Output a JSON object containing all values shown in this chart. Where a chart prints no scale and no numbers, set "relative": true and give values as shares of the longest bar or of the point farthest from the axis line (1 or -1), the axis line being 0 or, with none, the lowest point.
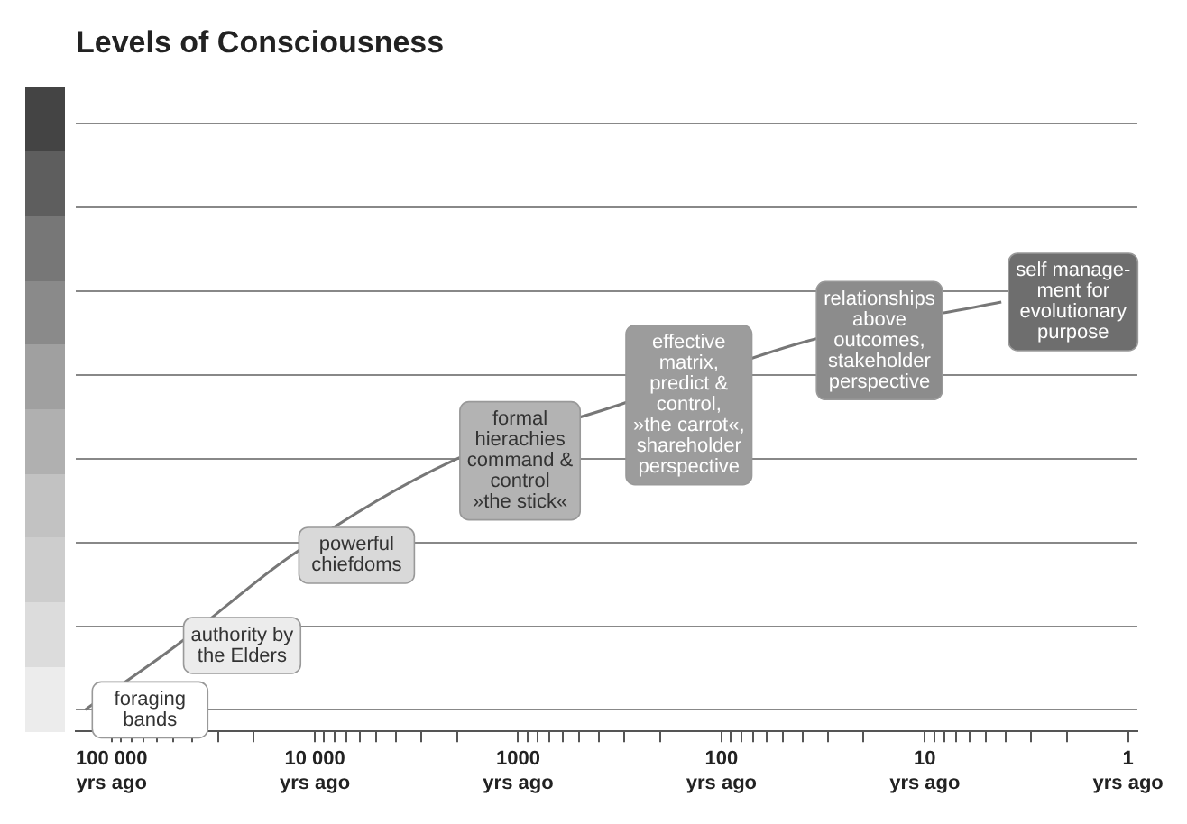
{
  "chart_data": {
    "type": "line",
    "title": "Levels of Consciousness",
    "relative": true,
    "log": "x",
    "grid": "y",
    "line_style": "solid",
    "xlim": [
      150000,
      0.9
    ],
    "xticks": [
      {
        "value": 100000,
        "label": "100 000\nyrs ago"
      },
      {
        "value": 90000,
        "label": null
      },
      {
        "value": 80000,
        "label": null
      },
      {
        "value": 70000,
        "label": null
      },
      {
        "value": 60000,
        "label": null
      },
      {
        "value": 50000,
        "label": null
      },
      {
        "value": 40000,
        "label": null
      },
      {
        "value": 30000,
        "label": null
      },
      {
        "value": 20000,
        "label": null
      },
      {
        "value": 10000,
        "label": "10 000\nyrs ago"
      },
      {
        "value": 9000,
        "label": null
      },
      {
        "value": 8000,
        "label": null
      },
      {
        "value": 7000,
        "label": null
      },
      {
        "value": 6000,
        "label": null
      },
      {
        "value": 5000,
        "label": null
      },
      {
        "value": 4000,
        "label": null
      },
      {
        "value": 3000,
        "label": null
      },
      {
        "value": 2000,
        "label": null
      },
      {
        "value": 1000,
        "label": "1000\nyrs ago"
      },
      {
        "value": 900,
        "label": null
      },
      {
        "value": 800,
        "label": null
      },
      {
        "value": 700,
        "label": null
      },
      {
        "value": 600,
        "label": null
      },
      {
        "value": 500,
        "label": null
      },
      {
        "value": 400,
        "label": null
      },
      {
        "value": 300,
        "label": null
      },
      {
        "value": 200,
        "label": null
      },
      {
        "value": 100,
        "label": "100\nyrs ago"
      },
      {
        "value": 90,
        "label": null
      },
      {
        "value": 80,
        "label": null
      },
      {
        "value": 70,
        "label": null
      },
      {
        "value": 60,
        "label": null
      },
      {
        "value": 50,
        "label": null
      },
      {
        "value": 40,
        "label": null
      },
      {
        "value": 30,
        "label": null
      },
      {
        "value": 20,
        "label": null
      },
      {
        "value": 10,
        "label": "10\nyrs ago"
      },
      {
        "value": 9,
        "label": null
      },
      {
        "value": 8,
        "label": null
      },
      {
        "value": 7,
        "label": null
      },
      {
        "value": 6,
        "label": null
      },
      {
        "value": 5,
        "label": null
      },
      {
        "value": 4,
        "label": null
      },
      {
        "value": 3,
        "label": null
      },
      {
        "value": 2,
        "label": null
      },
      {
        "value": 1,
        "label": "1\nyrs ago"
      }
    ],
    "x": [
      135000,
      48000,
      13000,
      2100,
      320,
      37,
      4.2
    ],
    "series": [
      {
        "color": "#777777",
        "colors": [
          "#ffffff",
          "#ececec",
          "#d9d9d9",
          "#b3b3b3",
          "#9c9c9c",
          "#8c8c8c",
          "#6e6e6e"
        ],
        "values": [
          0.05,
          0.2,
          0.41,
          0.63,
          0.76,
          0.91,
          1
        ]
      }
    ],
    "annotations": [
      {
        "text": "foraging\nbands",
        "x": 135000,
        "y": 0.05
      },
      {
        "text": "authority by\nthe Elders",
        "x": 48000,
        "y": 0.2
      },
      {
        "text": "powerful\nchiefdoms",
        "x": 13000,
        "y": 0.41
      },
      {
        "text": "formal\nhierachies\ncommand &\ncontrol\n»the stick«",
        "x": 2100,
        "y": 0.63
      },
      {
        "text": "effective\nmatrix,\npredict &\ncontrol,\n»the carrot«,\nshareholder\nperspective",
        "x": 320,
        "y": 0.76
      },
      {
        "text": "relationships\nabove\noutcomes,\nstakeholder\nperspective",
        "x": 37,
        "y": 0.91
      },
      {
        "text": "self manage-\nment for\nevolutionary\npurpose",
        "x": 4.2,
        "y": 1
      }
    ]
  }
}
